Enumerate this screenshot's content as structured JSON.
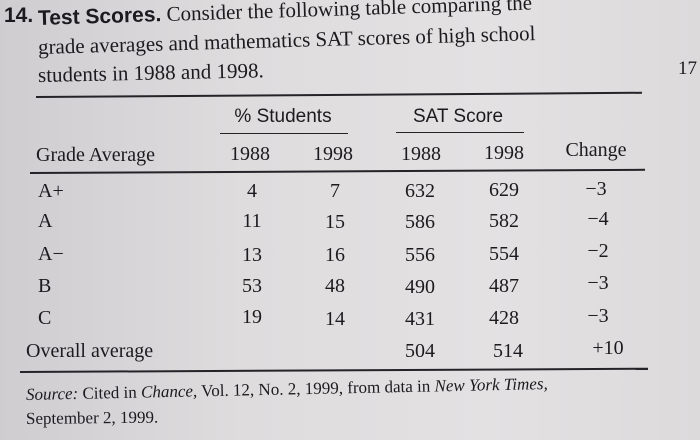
{
  "problem": {
    "number": "14.",
    "title": "Test Scores.",
    "intro_line1": "Consider the following table comparing the",
    "intro_line2": "grade averages and mathematics SAT scores of high school",
    "intro_line3": "students in 1988 and 1998.",
    "side_number": "17"
  },
  "table": {
    "group_students": "% Students",
    "group_sat": "SAT Score",
    "headers": [
      "Grade Average",
      "1988",
      "1998",
      "1988",
      "1998",
      "Change"
    ],
    "rows": [
      [
        "A+",
        "4",
        "7",
        "632",
        "629",
        "−3"
      ],
      [
        "A",
        "11",
        "15",
        "586",
        "582",
        "−4"
      ],
      [
        "A−",
        "13",
        "16",
        "556",
        "554",
        "−2"
      ],
      [
        "B",
        "53",
        "48",
        "490",
        "487",
        "−3"
      ],
      [
        "C",
        "19",
        "14",
        "431",
        "428",
        "−3"
      ],
      [
        "Overall average",
        "",
        "",
        "504",
        "514",
        "+10"
      ]
    ]
  },
  "source": {
    "label": "Source:",
    "text1": " Cited in ",
    "italic1": "Chance,",
    "text2": " Vol. 12, No. 2, 1999, from data in ",
    "italic2": "New York Times,",
    "line2": "September 2, 1999."
  }
}
